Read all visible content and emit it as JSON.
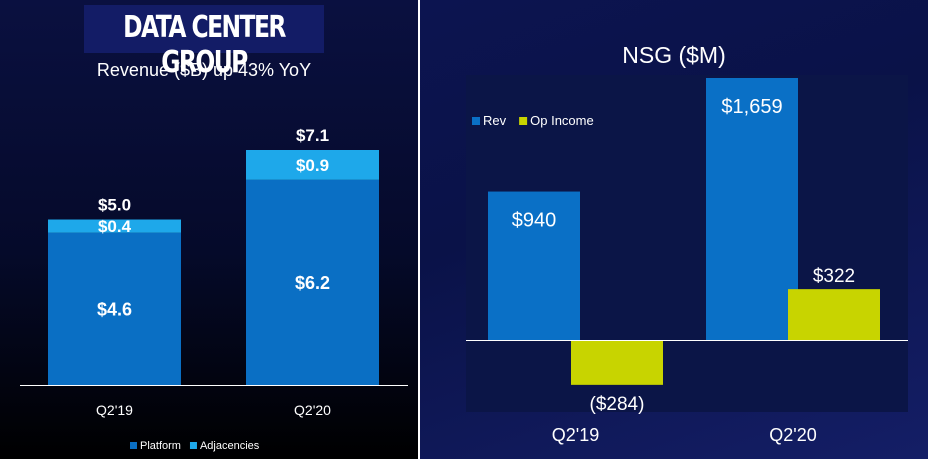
{
  "left_panel": {
    "title": "DATA CENTER GROUP",
    "subtitle": "Revenue ($B) up 43% YoY"
  },
  "right_panel": {
    "title": "NSG ($M)"
  },
  "colors": {
    "platform": "#0a6fc4",
    "adjacencies": "#1ea8ea",
    "rev": "#0a70c6",
    "op_income": "#c8d400",
    "text": "#ffffff"
  },
  "chart_data": [
    {
      "type": "bar",
      "stacked": true,
      "title": "Revenue ($B) up 43% YoY",
      "categories": [
        "Q2'19",
        "Q2'20"
      ],
      "series": [
        {
          "name": "Platform",
          "values": [
            4.6,
            6.2
          ],
          "labels": [
            "$4.6",
            "$6.2"
          ]
        },
        {
          "name": "Adjacencies",
          "values": [
            0.4,
            0.9
          ],
          "labels": [
            "$0.4",
            "$0.9"
          ]
        }
      ],
      "totals": [
        5.0,
        7.1
      ],
      "total_labels": [
        "$5.0",
        "$7.1"
      ],
      "ylim": [
        0,
        7.1
      ],
      "legend_position": "bottom",
      "grid": false
    },
    {
      "type": "bar",
      "title": "NSG ($M)",
      "categories": [
        "Q2'19",
        "Q2'20"
      ],
      "series": [
        {
          "name": "Rev",
          "values": [
            940,
            1659
          ],
          "labels": [
            "$940",
            "$1,659"
          ]
        },
        {
          "name": "Op Income",
          "values": [
            -284,
            322
          ],
          "labels": [
            "($284)",
            "$322"
          ]
        }
      ],
      "ylim": [
        -284,
        1659
      ],
      "legend_position": "top-left",
      "grid": false
    }
  ]
}
